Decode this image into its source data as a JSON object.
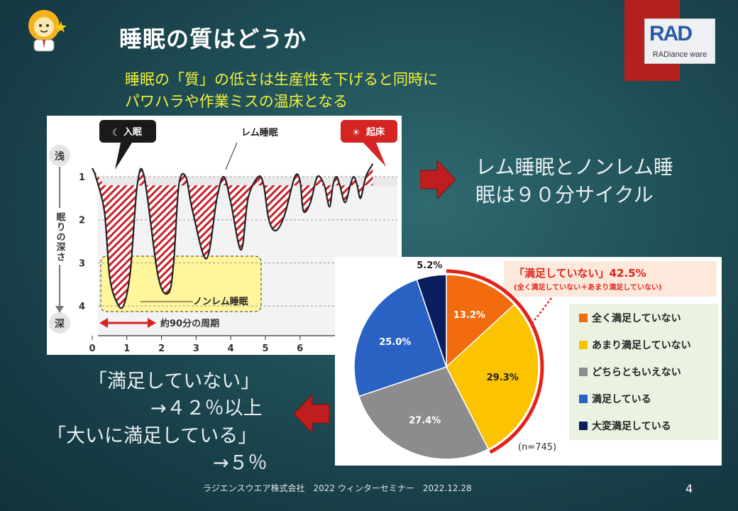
{
  "slide": {
    "title": "睡眠の質はどうか",
    "subtitle_line1": "睡眠の「質」の低さは生産性を下げると同時に",
    "subtitle_line2": "パワハラや作業ミスの温床となる",
    "logo_text": "RAD",
    "logo_subtext": "RADiance ware",
    "right_text_line1": "レム睡眠とノンレム睡",
    "right_text_line2": "眠は９０分サイクル",
    "left_text_line1": "「満足していない」",
    "left_text_line2": "→４２％以上",
    "left_text_line3": "「大いに満足している」",
    "left_text_line4": "→５％",
    "footer": "ラジエンスウエア株式会社　2022 ウィンターセミナー　2022.12.28",
    "page_number": "4"
  },
  "colors": {
    "accent_red": "#b42020",
    "subtitle_yellow": "#f2f23a",
    "pie_orange": "#f26b0f",
    "pie_yellow": "#fbc300",
    "pie_gray": "#8c8c8c",
    "pie_blue": "#2a62c4",
    "pie_navy": "#0a1d5c"
  },
  "chart_data": [
    {
      "type": "line",
      "label_sleep_onset": "入眠",
      "label_wake": "起床",
      "label_rem": "レム睡眠",
      "label_nonrem": "ノンレム睡眠",
      "label_cycle": "約90分の周期",
      "y_top_label": "浅",
      "y_bottom_label": "深",
      "ylabel": "眠りの深さ",
      "x_ticks": [
        "0",
        "1",
        "2",
        "3",
        "4",
        "5",
        "6"
      ],
      "y_ticks": [
        "1",
        "2",
        "3",
        "4"
      ],
      "series": [
        {
          "x": [
            0,
            0.1,
            0.35,
            0.5,
            0.7,
            0.9,
            1.1,
            1.3,
            1.5,
            1.9,
            2.2,
            2.35,
            2.5,
            2.7,
            2.9,
            3.3,
            3.6,
            3.8,
            4.0,
            4.3,
            4.5,
            4.8,
            4.95,
            5.1,
            5.3,
            5.55,
            5.85,
            6.0,
            6.1,
            6.3,
            6.5,
            6.7,
            6.85,
            6.95,
            7.05,
            7.15,
            7.3,
            7.45,
            7.55,
            7.65,
            7.75,
            7.9,
            8.1
          ],
          "y": [
            0.8,
            1.0,
            1.8,
            3.3,
            3.9,
            4.0,
            3.2,
            1.2,
            1.0,
            3.3,
            3.7,
            3.0,
            1.2,
            1.0,
            1.8,
            2.9,
            1.5,
            1.0,
            1.6,
            2.7,
            1.5,
            1.0,
            1.2,
            2.0,
            2.25,
            1.9,
            1.0,
            1.1,
            1.8,
            1.6,
            1.0,
            1.2,
            1.7,
            1.2,
            1.0,
            1.2,
            1.6,
            1.2,
            1.0,
            1.2,
            1.5,
            1.0,
            0.7
          ]
        }
      ]
    },
    {
      "type": "pie",
      "sample_note": "(n=745)",
      "highlight_label": "「満足していない」42.5%",
      "highlight_sublabel": "(全く満足していない＋あまり満足していない)",
      "categories": [
        "全く満足していない",
        "あまり満足していない",
        "どちらともいえない",
        "満足している",
        "大変満足している"
      ],
      "values": [
        13.2,
        29.3,
        27.4,
        25.0,
        5.2
      ],
      "value_labels": [
        "13.2%",
        "29.3%",
        "27.4%",
        "25.0%",
        "5.2%"
      ],
      "legend": "right"
    }
  ]
}
